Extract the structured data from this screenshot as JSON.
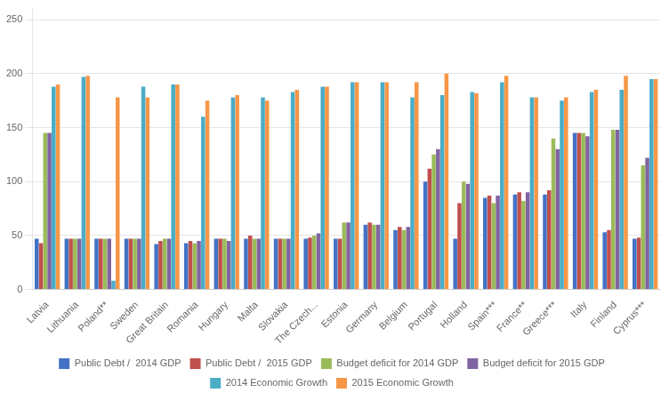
{
  "chart_data": {
    "type": "bar",
    "categories": [
      "Latvia",
      "Lithuania",
      "Poland**",
      "Sweden",
      "Great Britain",
      "Romania",
      "Hungary",
      "Malta",
      "Slovakia",
      "The Czech...",
      "Estonia",
      "Germany",
      "Belgium",
      "Portugal",
      "Holland",
      "Spain***",
      "France**",
      "Greece***",
      "Italy",
      "Finland",
      "Cyprus***"
    ],
    "series": [
      {
        "name": "Public Debt /  2014 GDP",
        "color": "#4472C4",
        "values": [
          47,
          47,
          47,
          47,
          42,
          43,
          47,
          47,
          47,
          47,
          47,
          60,
          55,
          100,
          47,
          85,
          88,
          88,
          145,
          53,
          47
        ]
      },
      {
        "name": "Public Debt /  2015 GDP",
        "color": "#C0504D",
        "values": [
          43,
          47,
          47,
          47,
          45,
          45,
          47,
          50,
          47,
          48,
          47,
          62,
          58,
          112,
          80,
          87,
          90,
          92,
          145,
          55,
          48
        ]
      },
      {
        "name": "Budget deficit for 2014 GDP",
        "color": "#9BBB59",
        "values": [
          145,
          47,
          47,
          47,
          47,
          43,
          47,
          47,
          47,
          50,
          62,
          60,
          55,
          125,
          100,
          80,
          82,
          140,
          145,
          148,
          115
        ]
      },
      {
        "name": "Budget deficit for 2015 GDP",
        "color": "#8064A2",
        "values": [
          145,
          47,
          47,
          47,
          47,
          45,
          45,
          47,
          47,
          52,
          62,
          60,
          58,
          130,
          98,
          87,
          90,
          130,
          142,
          148,
          122
        ]
      },
      {
        "name": "2014 Economic Growth",
        "color": "#4BACC6",
        "values": [
          188,
          197,
          8,
          188,
          190,
          160,
          178,
          178,
          183,
          188,
          192,
          192,
          178,
          180,
          183,
          192,
          178,
          175,
          183,
          185,
          195
        ]
      },
      {
        "name": "2015 Economic Growth",
        "color": "#F79646",
        "values": [
          190,
          198,
          178,
          178,
          190,
          175,
          180,
          175,
          185,
          188,
          192,
          192,
          192,
          200,
          182,
          198,
          178,
          178,
          185,
          198,
          195
        ]
      }
    ],
    "ylim": [
      0,
      260
    ],
    "yticks": [
      0,
      50,
      100,
      150,
      200,
      250
    ],
    "grid": true,
    "legend": "bottom"
  }
}
